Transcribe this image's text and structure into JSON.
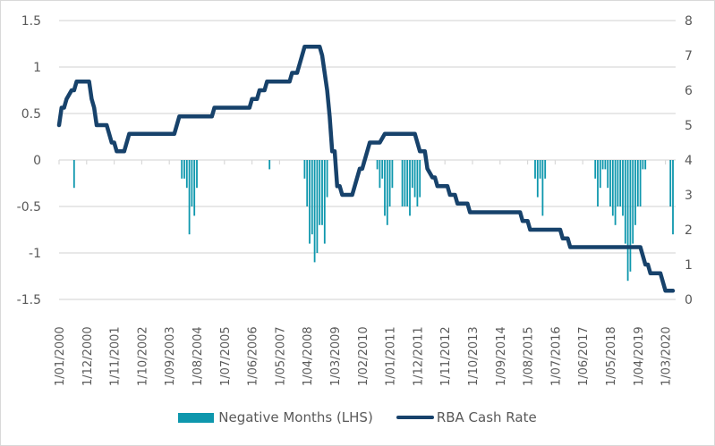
{
  "chart_data": {
    "type": "bar+line",
    "title": "",
    "colors": {
      "bars": "#0e97ad",
      "line": "#17426b",
      "grid": "#d9d9d9",
      "text": "#595959"
    },
    "left_axis": {
      "min": -1.5,
      "max": 1.5,
      "step": 0.5,
      "ticks": [
        "1.5",
        "1",
        "0.5",
        "0",
        "-0.5",
        "-1",
        "-1.5"
      ]
    },
    "right_axis": {
      "min": 0,
      "max": 8,
      "step": 1,
      "ticks": [
        "8",
        "7",
        "6",
        "5",
        "4",
        "3",
        "2",
        "1",
        "0"
      ]
    },
    "x_axis": {
      "start": "2000-01",
      "months_total": 246,
      "tick_interval_months": 11,
      "tick_labels": [
        "1/01/2000",
        "1/12/2000",
        "1/11/2001",
        "1/10/2002",
        "1/09/2003",
        "1/08/2004",
        "1/07/2005",
        "1/06/2006",
        "1/05/2007",
        "1/04/2008",
        "1/03/2009",
        "1/02/2010",
        "1/01/2011",
        "1/12/2011",
        "1/11/2012",
        "1/10/2013",
        "1/09/2014",
        "1/08/2015",
        "1/07/2016",
        "1/06/2017",
        "1/05/2018",
        "1/04/2019",
        "1/03/2020"
      ]
    },
    "grid": true,
    "legend_position": "bottom",
    "series": [
      {
        "name": "Negative Months (LHS)",
        "type": "bar",
        "axis": "left",
        "points": [
          [
            6,
            -0.3
          ],
          [
            49,
            -0.2
          ],
          [
            50,
            -0.2
          ],
          [
            51,
            -0.3
          ],
          [
            52,
            -0.8
          ],
          [
            53,
            -0.5
          ],
          [
            54,
            -0.6
          ],
          [
            55,
            -0.3
          ],
          [
            84,
            -0.1
          ],
          [
            98,
            -0.2
          ],
          [
            99,
            -0.5
          ],
          [
            100,
            -0.9
          ],
          [
            101,
            -0.8
          ],
          [
            102,
            -1.1
          ],
          [
            103,
            -1.0
          ],
          [
            104,
            -0.7
          ],
          [
            105,
            -0.7
          ],
          [
            106,
            -0.9
          ],
          [
            107,
            -0.4
          ],
          [
            127,
            -0.1
          ],
          [
            128,
            -0.3
          ],
          [
            129,
            -0.2
          ],
          [
            130,
            -0.6
          ],
          [
            131,
            -0.7
          ],
          [
            132,
            -0.5
          ],
          [
            133,
            -0.3
          ],
          [
            137,
            -0.5
          ],
          [
            138,
            -0.5
          ],
          [
            139,
            -0.5
          ],
          [
            140,
            -0.6
          ],
          [
            141,
            -0.3
          ],
          [
            142,
            -0.4
          ],
          [
            143,
            -0.5
          ],
          [
            144,
            -0.4
          ],
          [
            190,
            -0.2
          ],
          [
            191,
            -0.4
          ],
          [
            192,
            -0.2
          ],
          [
            193,
            -0.6
          ],
          [
            194,
            -0.2
          ],
          [
            214,
            -0.2
          ],
          [
            215,
            -0.5
          ],
          [
            216,
            -0.3
          ],
          [
            217,
            -0.1
          ],
          [
            218,
            -0.1
          ],
          [
            219,
            -0.3
          ],
          [
            220,
            -0.5
          ],
          [
            221,
            -0.6
          ],
          [
            222,
            -0.7
          ],
          [
            223,
            -0.5
          ],
          [
            224,
            -0.5
          ],
          [
            225,
            -0.6
          ],
          [
            226,
            -0.9
          ],
          [
            227,
            -1.3
          ],
          [
            228,
            -1.2
          ],
          [
            229,
            -0.9
          ],
          [
            230,
            -0.7
          ],
          [
            231,
            -0.5
          ],
          [
            232,
            -0.5
          ],
          [
            233,
            -0.1
          ],
          [
            234,
            -0.1
          ],
          [
            244,
            -0.5
          ],
          [
            245,
            -0.8
          ]
        ]
      },
      {
        "name": "RBA Cash Rate",
        "type": "line",
        "axis": "right",
        "points": [
          [
            0,
            5.0
          ],
          [
            1,
            5.5
          ],
          [
            2,
            5.5
          ],
          [
            3,
            5.75
          ],
          [
            5,
            6.0
          ],
          [
            6,
            6.0
          ],
          [
            7,
            6.25
          ],
          [
            12,
            6.25
          ],
          [
            13,
            5.75
          ],
          [
            14,
            5.5
          ],
          [
            15,
            5.0
          ],
          [
            19,
            5.0
          ],
          [
            20,
            4.75
          ],
          [
            21,
            4.5
          ],
          [
            22,
            4.5
          ],
          [
            23,
            4.25
          ],
          [
            26,
            4.25
          ],
          [
            28,
            4.75
          ],
          [
            46,
            4.75
          ],
          [
            47,
            5.0
          ],
          [
            48,
            5.25
          ],
          [
            61,
            5.25
          ],
          [
            62,
            5.5
          ],
          [
            76,
            5.5
          ],
          [
            77,
            5.75
          ],
          [
            79,
            5.75
          ],
          [
            80,
            6.0
          ],
          [
            82,
            6.0
          ],
          [
            83,
            6.25
          ],
          [
            92,
            6.25
          ],
          [
            93,
            6.5
          ],
          [
            95,
            6.5
          ],
          [
            96,
            6.75
          ],
          [
            98,
            7.25
          ],
          [
            104,
            7.25
          ],
          [
            105,
            7.0
          ],
          [
            107,
            6.0
          ],
          [
            108,
            5.25
          ],
          [
            109,
            4.25
          ],
          [
            110,
            4.25
          ],
          [
            111,
            3.25
          ],
          [
            112,
            3.25
          ],
          [
            113,
            3.0
          ],
          [
            117,
            3.0
          ],
          [
            118,
            3.25
          ],
          [
            119,
            3.5
          ],
          [
            120,
            3.75
          ],
          [
            121,
            3.75
          ],
          [
            123,
            4.25
          ],
          [
            124,
            4.5
          ],
          [
            128,
            4.5
          ],
          [
            130,
            4.75
          ],
          [
            142,
            4.75
          ],
          [
            143,
            4.5
          ],
          [
            144,
            4.25
          ],
          [
            146,
            4.25
          ],
          [
            147,
            3.75
          ],
          [
            149,
            3.5
          ],
          [
            150,
            3.5
          ],
          [
            151,
            3.25
          ],
          [
            155,
            3.25
          ],
          [
            156,
            3.0
          ],
          [
            158,
            3.0
          ],
          [
            159,
            2.75
          ],
          [
            163,
            2.75
          ],
          [
            164,
            2.5
          ],
          [
            184,
            2.5
          ],
          [
            185,
            2.25
          ],
          [
            187,
            2.25
          ],
          [
            188,
            2.0
          ],
          [
            200,
            2.0
          ],
          [
            201,
            1.75
          ],
          [
            203,
            1.75
          ],
          [
            204,
            1.5
          ],
          [
            232,
            1.5
          ],
          [
            233,
            1.25
          ],
          [
            234,
            1.0
          ],
          [
            235,
            1.0
          ],
          [
            236,
            0.75
          ],
          [
            240,
            0.75
          ],
          [
            242,
            0.25
          ],
          [
            245,
            0.25
          ]
        ]
      }
    ]
  },
  "legend": {
    "bars_label": "Negative Months (LHS)",
    "line_label": "RBA Cash Rate"
  }
}
